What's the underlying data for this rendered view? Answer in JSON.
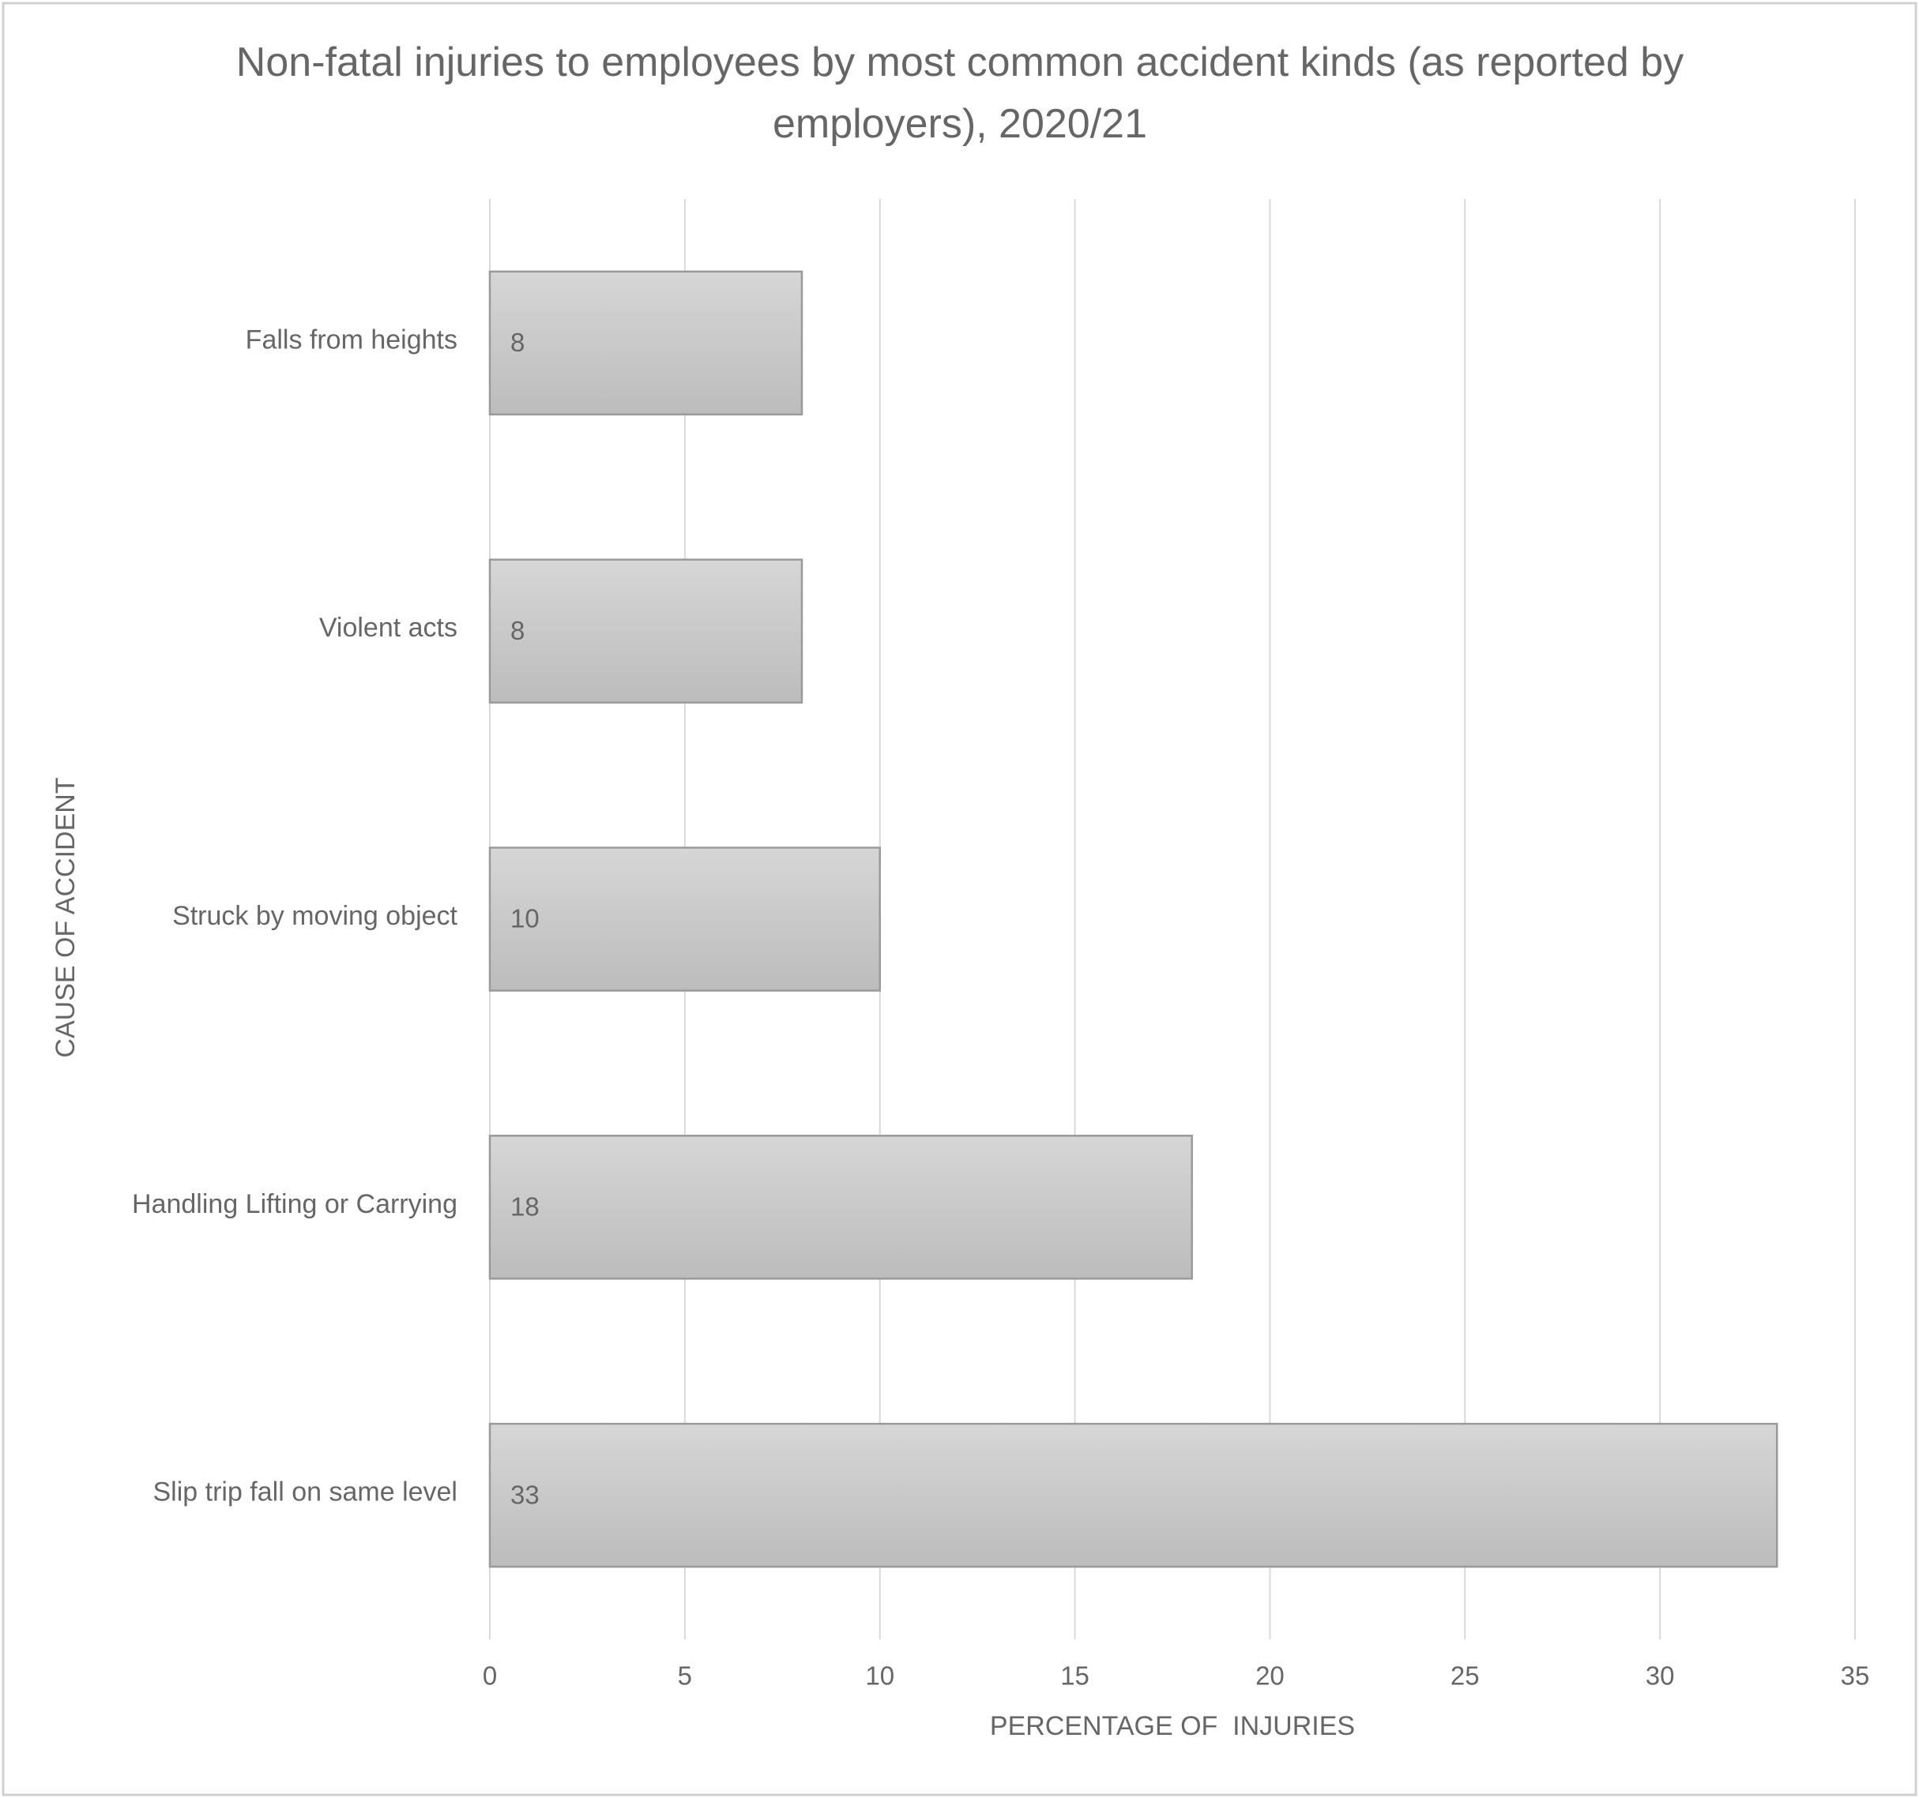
{
  "chart_data": {
    "type": "bar",
    "orientation": "horizontal",
    "title": "Non-fatal injuries to employees by most common accident kinds (as reported by employers), 2020/21",
    "x_label": "PERCENTAGE OF  INJURIES",
    "y_label": "CAUSE OF ACCIDENT",
    "categories": [
      "Falls from heights",
      "Violent acts",
      "Struck by moving object",
      "Handling Lifting or Carrying",
      "Slip trip fall on same level"
    ],
    "values": [
      8,
      8,
      10,
      18,
      33
    ],
    "color": "#c8c8c8",
    "xlim": [
      0,
      35
    ],
    "xticks": [
      0,
      5,
      10,
      15,
      20,
      25,
      30,
      35
    ],
    "grid": true
  }
}
